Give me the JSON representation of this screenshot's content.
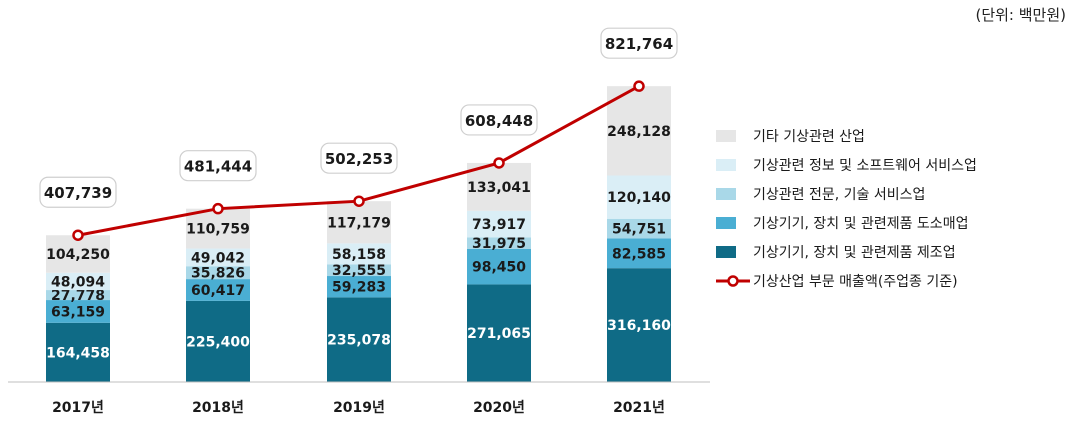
{
  "unit_label": "(단위:  백만원)",
  "chart_data": {
    "type": "bar",
    "stacked": true,
    "categories": [
      "2017년",
      "2018년",
      "2019년",
      "2020년",
      "2021년"
    ],
    "series": [
      {
        "name": "기상기기, 장치 및 관련제품 제조업",
        "color": "#0f6b86",
        "values": [
          164458,
          225400,
          235078,
          271065,
          316160
        ],
        "labels": [
          "164,458",
          "225,400",
          "235,078",
          "271,065",
          "316,160"
        ]
      },
      {
        "name": "기상기기, 장치 및 관련제품 도소매업",
        "color": "#4aaed3",
        "values": [
          63159,
          60417,
          59283,
          98450,
          82585
        ],
        "labels": [
          "63,159",
          "60,417",
          "59,283",
          "98,450",
          "82,585"
        ]
      },
      {
        "name": "기상관련 전문, 기술 서비스업",
        "color": "#a9d8e8",
        "values": [
          27778,
          35826,
          32555,
          31975,
          54751
        ],
        "labels": [
          "27,778",
          "35,826",
          "32,555",
          "31,975",
          "54,751"
        ]
      },
      {
        "name": "기상관련 정보 및 소프트웨어 서비스업",
        "color": "#daeef6",
        "values": [
          48094,
          49042,
          58158,
          73917,
          120140
        ],
        "labels": [
          "48,094",
          "49,042",
          "58,158",
          "73,917",
          "120,140"
        ]
      },
      {
        "name": "기타 기상관련 산업",
        "color": "#e6e6e6",
        "values": [
          104250,
          110759,
          117179,
          133041,
          248128
        ],
        "labels": [
          "104,250",
          "110,759",
          "117,179",
          "133,041",
          "248,128"
        ]
      }
    ],
    "line": {
      "name": "기상산업 부문 매출액(주업종 기준)",
      "color": "#c00000",
      "values": [
        407739,
        481444,
        502253,
        608448,
        821764
      ],
      "labels": [
        "407,739",
        "481,444",
        "502,253",
        "608,448",
        "821,764"
      ]
    },
    "legend_order": [
      4,
      3,
      2,
      1,
      0
    ],
    "legend_position": "right",
    "ylim": [
      0,
      900000
    ],
    "grid": false
  }
}
